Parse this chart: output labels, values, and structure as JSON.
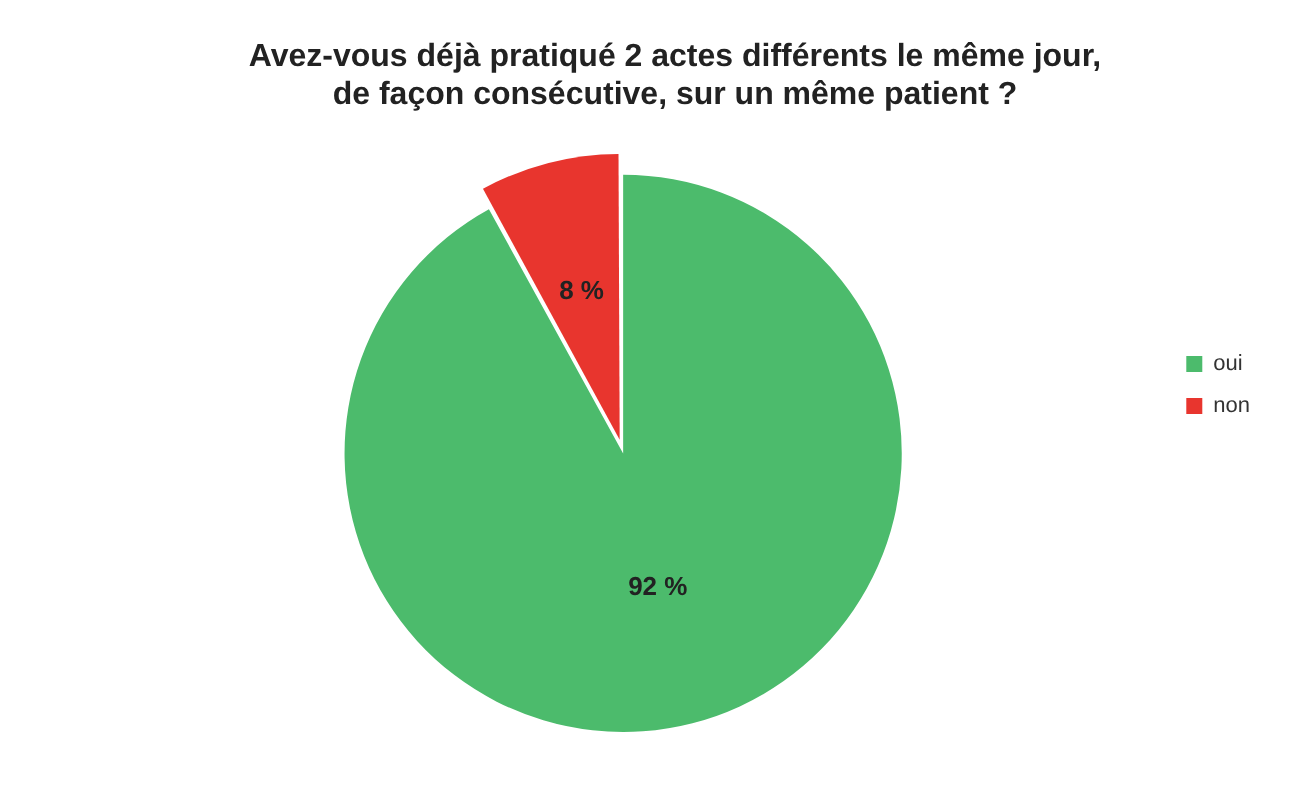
{
  "chart_data": {
    "type": "pie",
    "title": "Avez-vous déjà pratiqué 2 actes différents le même jour,\nde façon consécutive, sur un même patient ?",
    "categories": [
      "oui",
      "non"
    ],
    "values": [
      92,
      8
    ],
    "colors": [
      "#4cbb6c",
      "#e8352e"
    ],
    "value_labels": [
      "92 %",
      "8 %"
    ],
    "legend": "right"
  }
}
